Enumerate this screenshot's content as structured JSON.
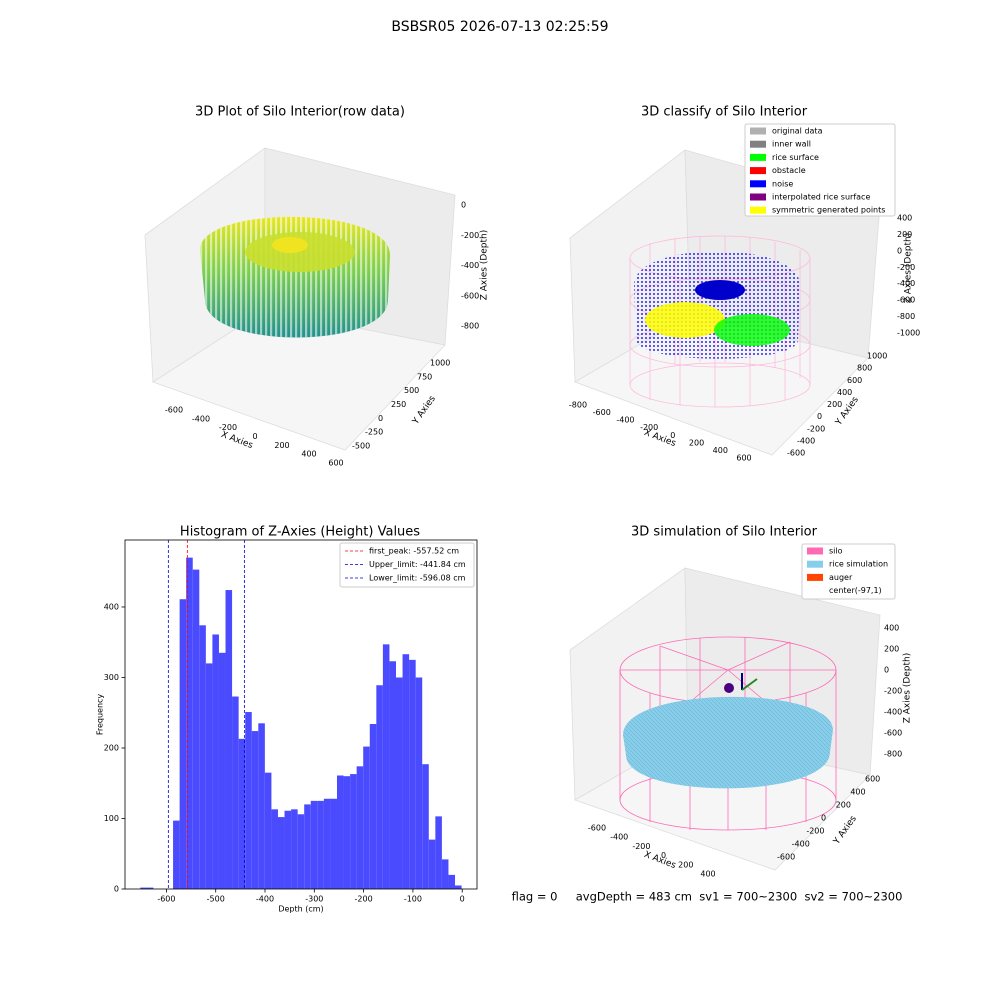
{
  "suptitle": "BSBSR05 2026-07-13 02:25:59",
  "status": "flag = 0     avgDepth = 483 cm  sv1 = 700~2300  sv2 = 700~2300",
  "chart_data": [
    {
      "type": "scatter3d",
      "title": "3D Plot of Silo Interior(row data)",
      "xlabel": "X Axies",
      "ylabel": "Y Axies",
      "zlabel": "Z Axies (Depth)",
      "xticks": [
        -600,
        -400,
        -200,
        0,
        200,
        400,
        600
      ],
      "yticks": [
        -500,
        -250,
        0,
        250,
        500,
        750,
        1000
      ],
      "zticks": [
        0,
        -200,
        -400,
        -600,
        -800
      ]
    },
    {
      "type": "scatter3d",
      "title": "3D classify of Silo Interior",
      "xlabel": "X Axies",
      "ylabel": "Y Axies",
      "zlabel": "Z Axies (Depth)",
      "xticks": [
        -800,
        -600,
        -400,
        -200,
        0,
        200,
        400,
        600
      ],
      "yticks": [
        -600,
        -400,
        -200,
        0,
        200,
        400,
        600,
        800,
        1000
      ],
      "zticks": [
        400,
        200,
        0,
        -200,
        -400,
        -600,
        -800,
        -1000
      ],
      "legend": [
        {
          "name": "original data",
          "color": "#b0b0b0"
        },
        {
          "name": "inner wall",
          "color": "#808080"
        },
        {
          "name": "rice surface",
          "color": "#00ff00"
        },
        {
          "name": "obstacle",
          "color": "#ff0000"
        },
        {
          "name": "noise",
          "color": "#0000ff"
        },
        {
          "name": "interpolated rice surface",
          "color": "#800080"
        },
        {
          "name": "symmetric generated points",
          "color": "#ffff00"
        }
      ]
    },
    {
      "type": "histogram",
      "title": "Histogram of Z-Axies (Height) Values",
      "xlabel": "Depth (cm)",
      "ylabel": "Frequency",
      "color": "#4a4aff",
      "bins": [
        -653,
        -639.7,
        -626.4,
        -613.1,
        -599.8,
        -586.5,
        -573.2,
        -559.9,
        -546.6,
        -533.3,
        -520,
        -506.7,
        -493.4,
        -480.1,
        -466.8,
        -453.5,
        -440.2,
        -426.9,
        -413.6,
        -400.3,
        -387,
        -373.7,
        -360.4,
        -347.1,
        -333.8,
        -320.5,
        -307.2,
        -293.9,
        -280.6,
        -267.3,
        -254,
        -240.7,
        -227.4,
        -214.1,
        -200.8,
        -187.5,
        -174.2,
        -160.9,
        -147.6,
        -134.3,
        -121,
        -107.7,
        -94.4,
        -81.1,
        -67.8,
        -54.5,
        -41.2,
        -27.9,
        -14.6,
        -1.3
      ],
      "counts": [
        2,
        2,
        0,
        0,
        0,
        97,
        411,
        470,
        453,
        374,
        320,
        361,
        335,
        424,
        273,
        213,
        251,
        224,
        235,
        165,
        113,
        102,
        111,
        113,
        106,
        120,
        125,
        125,
        128,
        128,
        161,
        160,
        163,
        174,
        202,
        234,
        289,
        347,
        323,
        300,
        333,
        325,
        300,
        177,
        70,
        103,
        42,
        20,
        5
      ],
      "xlim": [
        -684,
        30
      ],
      "ylim": [
        0,
        495
      ],
      "xticks": [
        -600,
        -500,
        -400,
        -300,
        -200,
        -100,
        0
      ],
      "yticks": [
        0,
        100,
        200,
        300,
        400
      ],
      "vlines": [
        {
          "label": "first_peak: -557.52 cm",
          "value": -557.52,
          "color": "#ff0000"
        },
        {
          "label": "Upper_limit: -441.84 cm",
          "value": -441.84,
          "color": "#0000cc"
        },
        {
          "label": "Lower_limit: -596.08 cm",
          "value": -596.08,
          "color": "#0000cc"
        }
      ]
    },
    {
      "type": "scatter3d",
      "title": "3D simulation of Silo Interior",
      "xlabel": "X Axies",
      "ylabel": "Y Axies",
      "zlabel": "Z Axies (Depth)",
      "xticks": [
        -600,
        -400,
        -200,
        0,
        200,
        400
      ],
      "yticks": [
        -600,
        -400,
        -200,
        0,
        200,
        400,
        600
      ],
      "zticks": [
        400,
        200,
        0,
        -200,
        -400,
        -600,
        -800
      ],
      "legend": [
        {
          "name": "silo",
          "color": "#ff69b4"
        },
        {
          "name": "rice simulation",
          "color": "#87ceeb"
        },
        {
          "name": "auger",
          "color": "#ff4500"
        },
        {
          "name": "center(-97,1)"
        }
      ]
    }
  ]
}
